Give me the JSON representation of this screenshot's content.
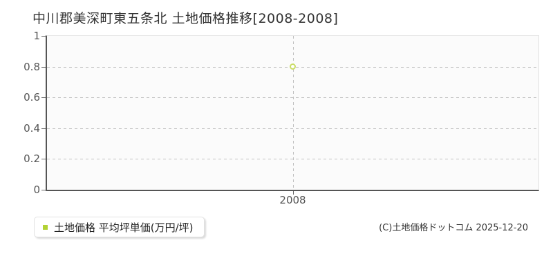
{
  "page": {
    "title": "中川郡美深町東五条北 土地価格推移[2008-2008]"
  },
  "chart_data": {
    "type": "line",
    "title": "中川郡美深町東五条北 土地価格推移[2008-2008]",
    "x": [
      2008
    ],
    "xtick_labels": [
      "2008"
    ],
    "series": [
      {
        "name": "土地価格",
        "values": [
          0.8
        ]
      }
    ],
    "xlabel": "",
    "ylabel": "",
    "ylim": [
      0,
      1
    ],
    "yticks": [
      0,
      0.2,
      0.4,
      0.6,
      0.8,
      1
    ],
    "ytick_labels": [
      "0",
      "0.2",
      "0.4",
      "0.6",
      "0.8",
      "1"
    ],
    "grid": "dashed horizontal lines at inner y ticks, dashed vertical line at each x tick",
    "legend_position": "bottom-left outside plot",
    "point_style": {
      "fill": "#ffffff",
      "stroke": "#cadd66"
    }
  },
  "legend": {
    "marker_color": "#b2d235",
    "label": "土地価格 平均坪単価(万円/坪)"
  },
  "footer": {
    "copyright": "(C)土地価格ドットコム 2025-12-20"
  },
  "colors": {
    "axis_dark": "#555555",
    "tick": "#666666",
    "grid": "#c0c0c0",
    "plot_bg": "#fbfbfb",
    "border_light": "#e8e8e8",
    "title_text": "#333333",
    "tick_text": "#555555"
  }
}
